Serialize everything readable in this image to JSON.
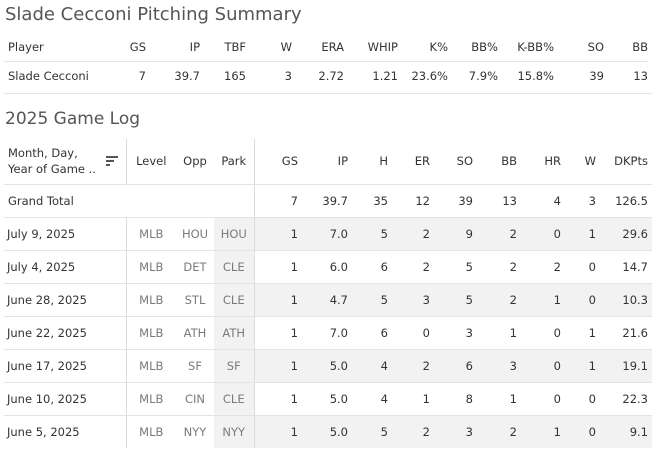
{
  "summary": {
    "title": "Slade Cecconi Pitching Summary",
    "headers": [
      "Player",
      "GS",
      "IP",
      "TBF",
      "W",
      "ERA",
      "WHIP",
      "K%",
      "BB%",
      "K-BB%",
      "SO",
      "BB"
    ],
    "row": [
      "Slade Cecconi",
      "7",
      "39.7",
      "165",
      "3",
      "2.72",
      "1.21",
      "23.6%",
      "7.9%",
      "15.8%",
      "39",
      "13"
    ]
  },
  "game_log": {
    "title": "2025 Game Log",
    "headers": {
      "date_line1": "Month, Day,",
      "date_line2": "Year of Game ..",
      "level": "Level",
      "opp": "Opp",
      "park": "Park",
      "gs": "GS",
      "ip": "IP",
      "h": "H",
      "er": "ER",
      "so": "SO",
      "bb": "BB",
      "hr": "HR",
      "w": "W",
      "dkpts": "DKPts"
    },
    "grand_total": {
      "label": "Grand Total",
      "gs": "7",
      "ip": "39.7",
      "h": "35",
      "er": "12",
      "so": "39",
      "bb": "13",
      "hr": "4",
      "w": "3",
      "dkpts": "126.5"
    },
    "rows": [
      {
        "date": "July 9, 2025",
        "level": "MLB",
        "opp": "HOU",
        "park": "HOU",
        "gs": "1",
        "ip": "7.0",
        "h": "5",
        "er": "2",
        "so": "9",
        "bb": "2",
        "hr": "0",
        "w": "1",
        "dkpts": "29.6"
      },
      {
        "date": "July 4, 2025",
        "level": "MLB",
        "opp": "DET",
        "park": "CLE",
        "gs": "1",
        "ip": "6.0",
        "h": "6",
        "er": "2",
        "so": "5",
        "bb": "2",
        "hr": "2",
        "w": "0",
        "dkpts": "14.7"
      },
      {
        "date": "June 28, 2025",
        "level": "MLB",
        "opp": "STL",
        "park": "CLE",
        "gs": "1",
        "ip": "4.7",
        "h": "5",
        "er": "3",
        "so": "5",
        "bb": "2",
        "hr": "1",
        "w": "0",
        "dkpts": "10.3"
      },
      {
        "date": "June 22, 2025",
        "level": "MLB",
        "opp": "ATH",
        "park": "ATH",
        "gs": "1",
        "ip": "7.0",
        "h": "6",
        "er": "0",
        "so": "3",
        "bb": "1",
        "hr": "0",
        "w": "1",
        "dkpts": "21.6"
      },
      {
        "date": "June 17, 2025",
        "level": "MLB",
        "opp": "SF",
        "park": "SF",
        "gs": "1",
        "ip": "5.0",
        "h": "4",
        "er": "2",
        "so": "6",
        "bb": "3",
        "hr": "0",
        "w": "1",
        "dkpts": "19.1"
      },
      {
        "date": "June 10, 2025",
        "level": "MLB",
        "opp": "CIN",
        "park": "CLE",
        "gs": "1",
        "ip": "5.0",
        "h": "4",
        "er": "1",
        "so": "8",
        "bb": "1",
        "hr": "0",
        "w": "0",
        "dkpts": "22.3"
      },
      {
        "date": "June 5, 2025",
        "level": "MLB",
        "opp": "NYY",
        "park": "NYY",
        "gs": "1",
        "ip": "5.0",
        "h": "5",
        "er": "2",
        "so": "3",
        "bb": "2",
        "hr": "1",
        "w": "0",
        "dkpts": "9.1"
      }
    ],
    "sort_icon": "sort-descending-icon"
  }
}
